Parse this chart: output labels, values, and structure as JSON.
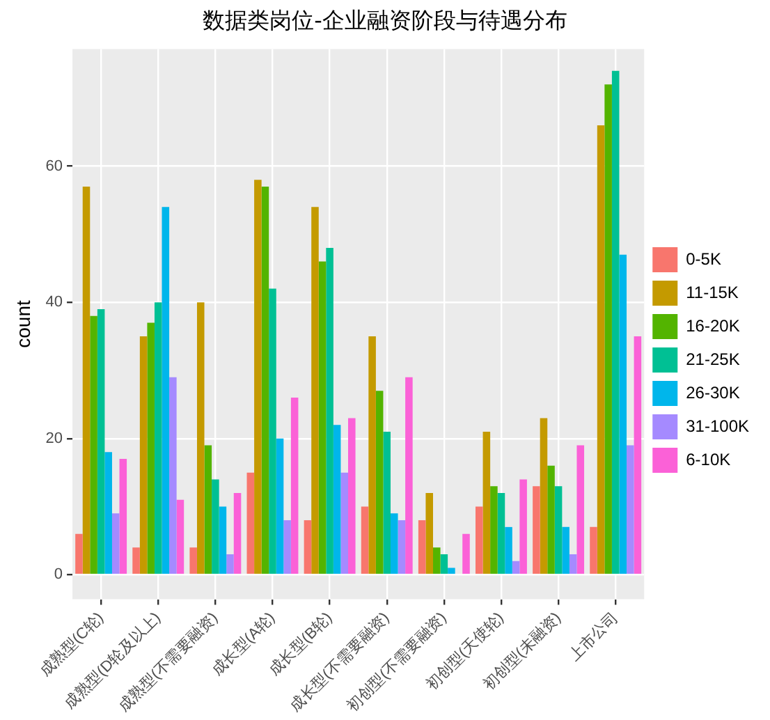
{
  "chart_data": {
    "type": "bar",
    "title": "数据类岗位-企业融资阶段与待遇分布",
    "ylabel": "count",
    "categories": [
      "成熟型(C轮)",
      "成熟型(D轮及以上)",
      "成熟型(不需要融资)",
      "成长型(A轮)",
      "成长型(B轮)",
      "成长型(不需要融资)",
      "初创型(不需要融资)",
      "初创型(天使轮)",
      "初创型(未融资)",
      "上市公司"
    ],
    "series": [
      {
        "name": "0-5K",
        "color": "#f8766d",
        "values": [
          6,
          4,
          4,
          15,
          8,
          10,
          8,
          10,
          13,
          7
        ]
      },
      {
        "name": "11-15K",
        "color": "#c49a00",
        "values": [
          57,
          35,
          40,
          58,
          54,
          35,
          12,
          21,
          23,
          66
        ]
      },
      {
        "name": "16-20K",
        "color": "#53b400",
        "values": [
          38,
          37,
          19,
          57,
          46,
          27,
          4,
          13,
          16,
          72
        ]
      },
      {
        "name": "21-25K",
        "color": "#00c094",
        "values": [
          39,
          40,
          14,
          42,
          48,
          21,
          3,
          12,
          13,
          74
        ]
      },
      {
        "name": "26-30K",
        "color": "#00b6eb",
        "values": [
          18,
          54,
          10,
          20,
          22,
          9,
          1,
          7,
          7,
          47
        ]
      },
      {
        "name": "31-100K",
        "color": "#a58aff",
        "values": [
          9,
          29,
          3,
          8,
          15,
          8,
          null,
          2,
          3,
          19
        ]
      },
      {
        "name": "6-10K",
        "color": "#fb61d7",
        "values": [
          17,
          11,
          12,
          26,
          23,
          29,
          6,
          14,
          19,
          35
        ]
      }
    ],
    "ylim": [
      -3.6,
      77.2
    ],
    "yticks": [
      0,
      20,
      40,
      60
    ],
    "grid": true,
    "legend": "right"
  }
}
